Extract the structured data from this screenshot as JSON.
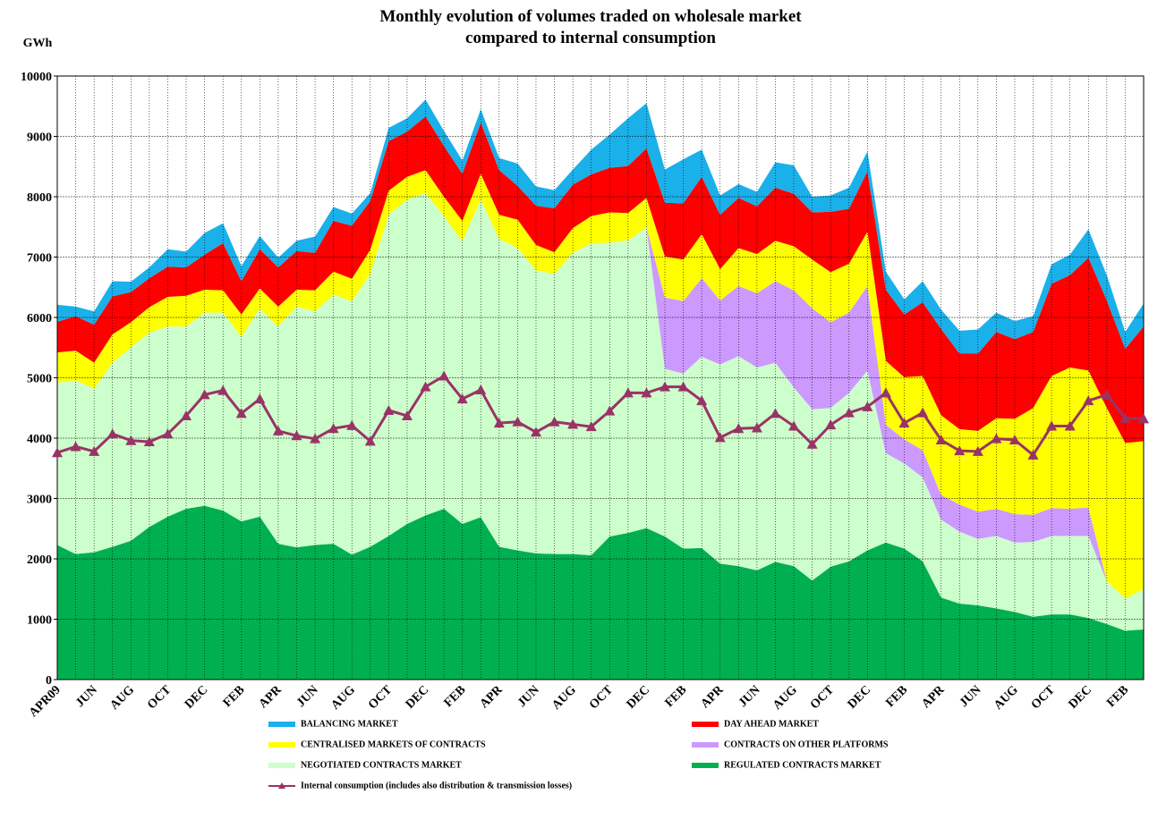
{
  "chart_data": {
    "type": "area",
    "title": "Monthly evolution of volumes traded on wholesale market",
    "subtitle": "compared to internal consumption",
    "y_label": "GWh",
    "stacked": true,
    "grid": true,
    "ylim": [
      0,
      10000
    ],
    "yticks": [
      0,
      1000,
      2000,
      3000,
      4000,
      5000,
      6000,
      7000,
      8000,
      9000,
      10000
    ],
    "categories": [
      "APR09",
      null,
      "JUN",
      null,
      "AUG",
      null,
      "OCT",
      null,
      "DEC",
      null,
      "FEB",
      null,
      "APR",
      null,
      "JUN",
      null,
      "AUG",
      null,
      "OCT",
      null,
      "DEC",
      null,
      "FEB",
      null,
      "APR",
      null,
      "JUN",
      null,
      "AUG",
      null,
      "OCT",
      null,
      "DEC",
      null,
      "FEB",
      null,
      "APR",
      null,
      "JUN",
      null,
      "AUG",
      null,
      "OCT",
      null,
      "DEC",
      null,
      "FEB",
      null,
      "APR",
      null,
      "JUN",
      null,
      "AUG",
      null,
      "OCT",
      null,
      "DEC",
      null,
      "FEB",
      null
    ],
    "series": [
      {
        "name": "REGULATED CONTRACTS MARKET",
        "color": "#00b050",
        "values": [
          2230,
          2080,
          2110,
          2200,
          2300,
          2530,
          2700,
          2830,
          2880,
          2800,
          2620,
          2700,
          2250,
          2190,
          2230,
          2250,
          2070,
          2200,
          2380,
          2580,
          2720,
          2830,
          2580,
          2690,
          2200,
          2140,
          2090,
          2080,
          2080,
          2060,
          2370,
          2430,
          2510,
          2370,
          2170,
          2180,
          1920,
          1880,
          1810,
          1950,
          1880,
          1640,
          1870,
          1960,
          2140,
          2270,
          2170,
          1960,
          1360,
          1260,
          1230,
          1180,
          1120,
          1040,
          1080,
          1080,
          1020,
          920,
          810,
          830
        ]
      },
      {
        "name": "NEGOTIATED CONTRACTS MARKET",
        "color": "#ccffcc",
        "values": [
          2690,
          2880,
          2710,
          3050,
          3200,
          3220,
          3150,
          3020,
          3200,
          3280,
          3060,
          3450,
          3600,
          3990,
          3870,
          4130,
          4200,
          4520,
          5320,
          5370,
          5340,
          4850,
          4680,
          5260,
          5100,
          5010,
          4690,
          4640,
          4990,
          5170,
          4870,
          4850,
          4980,
          2780,
          2900,
          3170,
          3300,
          3480,
          3360,
          3300,
          2960,
          2840,
          2630,
          2790,
          2980,
          1480,
          1410,
          1390,
          1290,
          1190,
          1100,
          1200,
          1150,
          1240,
          1300,
          1300,
          1360,
          710,
          530,
          670
        ]
      },
      {
        "name": "CONTRACTS ON OTHER PLATFORMS",
        "color": "#cc99ff",
        "values": [
          0,
          0,
          0,
          0,
          0,
          0,
          0,
          0,
          0,
          0,
          0,
          0,
          0,
          0,
          0,
          0,
          0,
          0,
          0,
          0,
          0,
          0,
          0,
          0,
          0,
          0,
          0,
          0,
          0,
          0,
          0,
          0,
          0,
          1180,
          1200,
          1300,
          1060,
          1160,
          1230,
          1350,
          1610,
          1670,
          1420,
          1330,
          1400,
          470,
          400,
          450,
          410,
          450,
          450,
          450,
          470,
          450,
          460,
          450,
          470,
          0,
          0,
          0
        ]
      },
      {
        "name": "CENTRALISED MARKETS OF CONTRACTS",
        "color": "#ffff00",
        "values": [
          500,
          490,
          430,
          470,
          420,
          420,
          490,
          510,
          380,
          370,
          370,
          330,
          330,
          280,
          350,
          380,
          370,
          400,
          400,
          380,
          380,
          320,
          340,
          430,
          400,
          470,
          420,
          360,
          410,
          450,
          500,
          450,
          490,
          680,
          690,
          730,
          520,
          630,
          650,
          670,
          730,
          810,
          830,
          810,
          900,
          1060,
          1030,
          1230,
          1320,
          1250,
          1340,
          1500,
          1580,
          1770,
          2190,
          2340,
          2270,
          2870,
          2580,
          2450
        ]
      },
      {
        "name": "DAY AHEAD MARKET",
        "color": "#ff0000",
        "values": [
          510,
          570,
          630,
          630,
          500,
          480,
          500,
          470,
          580,
          780,
          550,
          650,
          650,
          640,
          620,
          840,
          880,
          810,
          820,
          750,
          890,
          840,
          780,
          850,
          740,
          560,
          650,
          730,
          720,
          690,
          740,
          780,
          820,
          890,
          930,
          950,
          900,
          830,
          790,
          880,
          870,
          780,
          1000,
          910,
          1000,
          1180,
          1040,
          1220,
          1430,
          1250,
          1280,
          1430,
          1320,
          1260,
          1530,
          1530,
          1870,
          1780,
          1560,
          1900
        ]
      },
      {
        "name": "BALANCING MARKET",
        "color": "#1ab0ea",
        "values": [
          280,
          160,
          220,
          250,
          170,
          180,
          290,
          260,
          360,
          330,
          250,
          220,
          160,
          170,
          270,
          230,
          200,
          130,
          220,
          220,
          280,
          250,
          220,
          220,
          200,
          370,
          320,
          300,
          250,
          410,
          550,
          790,
          750,
          550,
          730,
          450,
          320,
          230,
          240,
          420,
          470,
          260,
          270,
          350,
          330,
          300,
          250,
          350,
          320,
          380,
          400,
          320,
          300,
          260,
          320,
          340,
          470,
          420,
          280,
          380
        ]
      },
      {
        "name": "Internal consumption (includes also distribution & transmission losses)",
        "color": "#993366",
        "type": "line",
        "values": [
          3760,
          3860,
          3780,
          4070,
          3960,
          3940,
          4070,
          4370,
          4720,
          4790,
          4410,
          4650,
          4120,
          4040,
          3990,
          4160,
          4210,
          3950,
          4460,
          4370,
          4850,
          5030,
          4650,
          4800,
          4250,
          4270,
          4100,
          4270,
          4230,
          4190,
          4450,
          4750,
          4750,
          4850,
          4850,
          4620,
          4010,
          4160,
          4170,
          4410,
          4200,
          3900,
          4220,
          4420,
          4520,
          4750,
          4250,
          4420,
          3970,
          3790,
          3780,
          3990,
          3970,
          3720,
          4200,
          4200,
          4620,
          4720,
          4330,
          4320
        ]
      }
    ]
  }
}
